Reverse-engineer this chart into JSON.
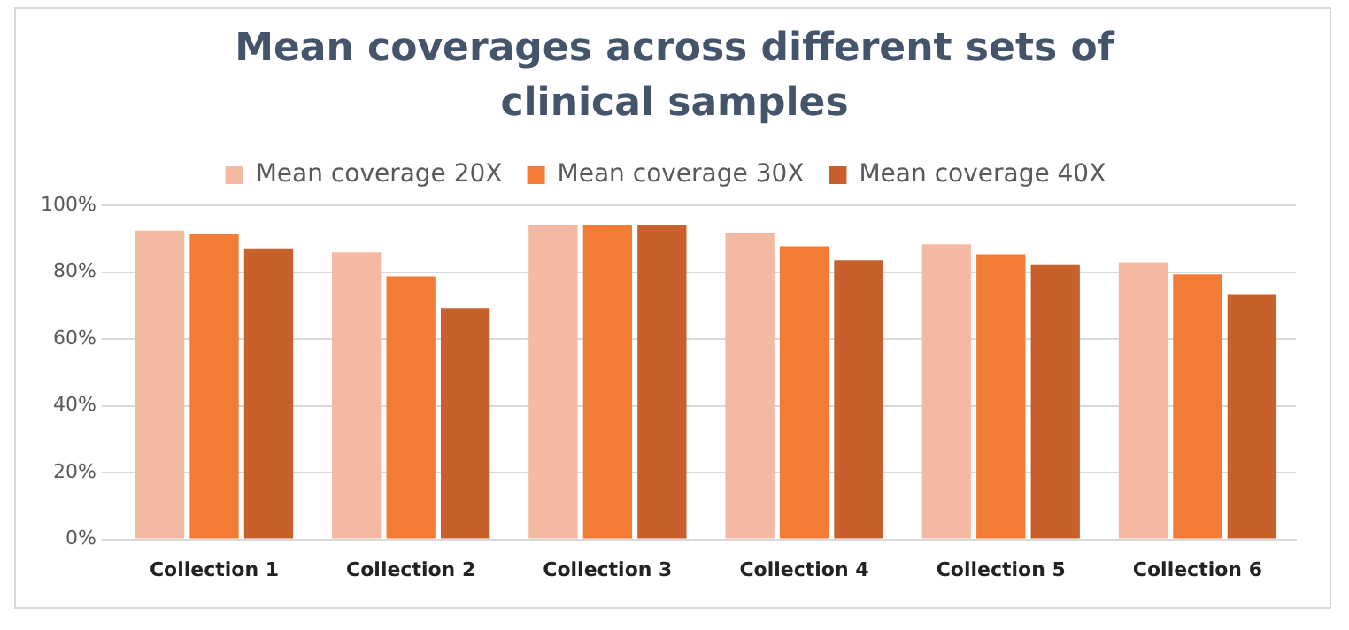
{
  "chart_data": {
    "type": "bar",
    "title": "Mean coverages across different sets of clinical samples",
    "categories": [
      "Collection 1",
      "Collection 2",
      "Collection 3",
      "Collection 4",
      "Collection 5",
      "Collection 6"
    ],
    "series": [
      {
        "name": "Mean coverage 20X",
        "color": "#f4b9a2",
        "values": [
          92.4,
          85.9,
          94.2,
          91.8,
          88.3,
          82.9
        ]
      },
      {
        "name": "Mean coverage 30X",
        "color": "#f27b35",
        "values": [
          91.3,
          78.7,
          94.2,
          87.7,
          85.3,
          79.3
        ]
      },
      {
        "name": "Mean coverage 40X",
        "color": "#c8602c",
        "values": [
          87.1,
          69.2,
          94.2,
          83.5,
          82.3,
          73.4
        ]
      }
    ],
    "ylim": [
      0,
      100
    ],
    "yticks": [
      {
        "value": 0,
        "label": "0%"
      },
      {
        "value": 20,
        "label": "20%"
      },
      {
        "value": 40,
        "label": "40%"
      },
      {
        "value": 60,
        "label": "60%"
      },
      {
        "value": 80,
        "label": "80%"
      },
      {
        "value": 100,
        "label": "100%"
      }
    ],
    "grid": "y",
    "legend": "top"
  }
}
